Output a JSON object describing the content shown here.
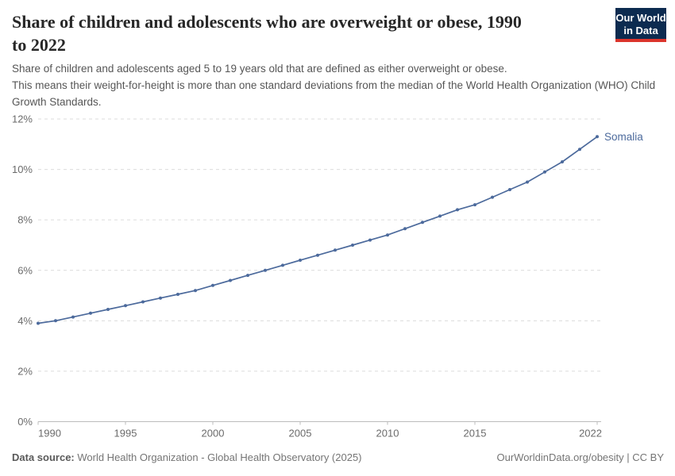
{
  "header": {
    "title": "Share of children and adolescents who are overweight or obese, 1990\nto 2022",
    "logo": {
      "line1": "Our World",
      "line2": "in Data"
    }
  },
  "subtitle": "Share of children and adolescents aged 5 to 19 years old that are defined as either overweight or obese.\nThis means their weight-for-height is more than one standard deviations from the median of the World Health Organization (WHO) Child Growth Standards.",
  "chart_data": {
    "type": "line",
    "title": "Share of children and adolescents who are overweight or obese, 1990 to 2022",
    "xlabel": "",
    "ylabel": "",
    "xlim": [
      1990,
      2022
    ],
    "ylim": [
      0,
      12
    ],
    "grid": "horizontal-dashed",
    "legend_position": "end-of-line-label",
    "x_ticks": [
      1990,
      1995,
      2000,
      2005,
      2010,
      2015,
      2022
    ],
    "y_ticks": [
      0,
      2,
      4,
      6,
      8,
      10,
      12
    ],
    "y_tick_suffix": "%",
    "series": [
      {
        "name": "Somalia",
        "color": "#4c6a9c",
        "x": [
          1990,
          1991,
          1992,
          1993,
          1994,
          1995,
          1996,
          1997,
          1998,
          1999,
          2000,
          2001,
          2002,
          2003,
          2004,
          2005,
          2006,
          2007,
          2008,
          2009,
          2010,
          2011,
          2012,
          2013,
          2014,
          2015,
          2016,
          2017,
          2018,
          2019,
          2020,
          2021,
          2022
        ],
        "values": [
          3.9,
          4.0,
          4.15,
          4.3,
          4.45,
          4.6,
          4.75,
          4.9,
          5.05,
          5.2,
          5.4,
          5.6,
          5.8,
          6.0,
          6.2,
          6.4,
          6.6,
          6.8,
          7.0,
          7.2,
          7.4,
          7.65,
          7.9,
          8.15,
          8.4,
          8.6,
          8.9,
          9.2,
          9.5,
          9.9,
          10.3,
          10.8,
          11.3
        ]
      }
    ]
  },
  "footer": {
    "source_label": "Data source:",
    "source_text": " World Health Organization - Global Health Observatory (2025)",
    "credit": "OurWorldinData.org/obesity | CC BY"
  },
  "colors": {
    "line": "#4c6a9c",
    "gridline": "#dcdcdc",
    "axis": "#bcbcbc",
    "tick_label": "#6b6b6b",
    "logo_background": "#0c2b50",
    "logo_red_bar": "#dc352c"
  }
}
